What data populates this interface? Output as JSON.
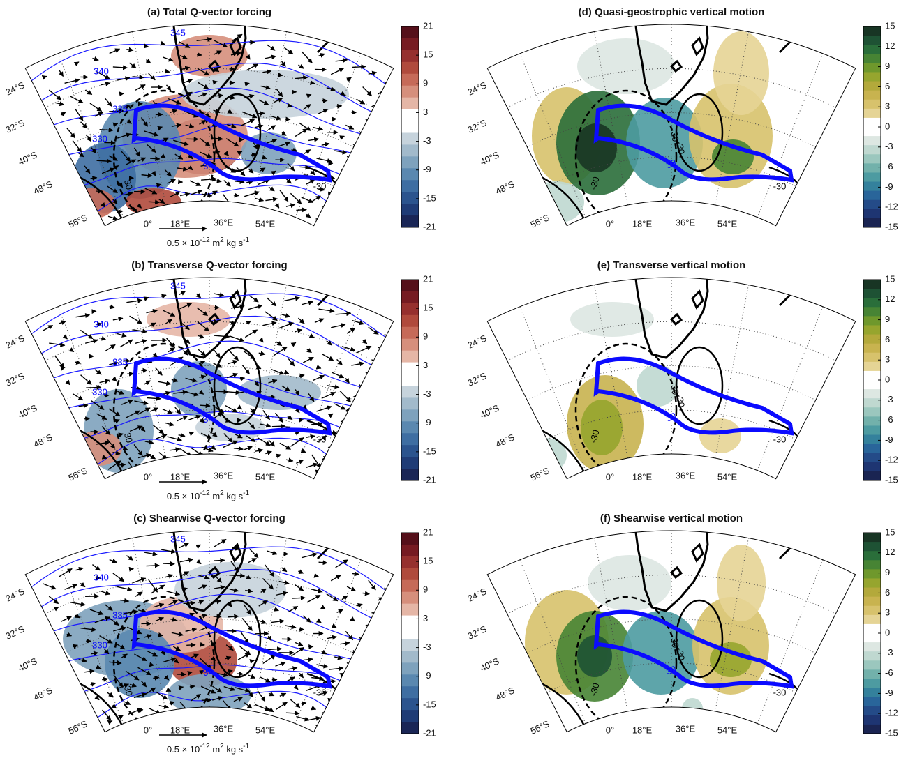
{
  "panels": [
    {
      "title": "(a)  Total Q-vector forcing",
      "lat_labels": [
        "24°S",
        "32°S",
        "40°S",
        "48°S",
        "56°S"
      ],
      "lon_labels": [
        "0°",
        "18°E",
        "36°E",
        "54°E"
      ],
      "contour_labels": [
        "345",
        "340",
        "335",
        "330",
        "38",
        "30",
        "-30"
      ],
      "colorbar": {
        "clim": [
          -21,
          21
        ],
        "ticks": [
          21,
          15,
          9,
          3,
          -3,
          -9,
          -15,
          -21
        ],
        "colors": [
          "#55101a",
          "#761b22",
          "#96302e",
          "#b04a3c",
          "#c66a58",
          "#d68f7c",
          "#e5b6a6",
          "#ffffff",
          "#ffffff",
          "#c6d3dc",
          "#a2bacb",
          "#7ea2bd",
          "#5a88b0",
          "#3e6ea2",
          "#2b548e",
          "#1f3c76",
          "#1a2656"
        ]
      },
      "vector_scale": {
        "parts": [
          "0.5 × 10",
          "-12",
          " m",
          "2",
          " kg s",
          "-1"
        ]
      }
    },
    {
      "title": "(d)  Quasi-geostrophic vertical motion",
      "lat_labels": [
        "24°S",
        "32°S",
        "40°S",
        "48°S",
        "56°S"
      ],
      "lon_labels": [
        "0°",
        "18°E",
        "36°E",
        "54°E"
      ],
      "contour_labels": [
        "-30",
        "30",
        "-30",
        "38",
        "-30"
      ],
      "colorbar": {
        "clim": [
          -15,
          15
        ],
        "ticks": [
          15,
          12,
          9,
          6,
          3,
          0,
          -3,
          -6,
          -9,
          -12,
          -15
        ],
        "colors": [
          "#183524",
          "#1e5234",
          "#2a6e3a",
          "#478434",
          "#6f982c",
          "#96a52e",
          "#b3a93b",
          "#c8b34f",
          "#d7c26c",
          "#e5d495",
          "#ffffff",
          "#ffffff",
          "#dde7e2",
          "#bfd8d0",
          "#9bc7be",
          "#72b1ab",
          "#4d9ba1",
          "#34819c",
          "#29659a",
          "#244b88",
          "#1e3572",
          "#1a2452"
        ]
      }
    },
    {
      "title": "(b) Transverse Q-vector forcing",
      "lat_labels": [
        "24°S",
        "32°S",
        "40°S",
        "48°S",
        "56°S"
      ],
      "lon_labels": [
        "0°",
        "18°E",
        "36°E",
        "54°E"
      ],
      "contour_labels": [
        "345",
        "340",
        "335",
        "330",
        "38",
        "30",
        "-30"
      ],
      "colorbar": {
        "clim": [
          -21,
          21
        ],
        "ticks": [
          21,
          15,
          9,
          3,
          -3,
          -9,
          -15,
          -21
        ],
        "colors": [
          "#55101a",
          "#761b22",
          "#96302e",
          "#b04a3c",
          "#c66a58",
          "#d68f7c",
          "#e5b6a6",
          "#ffffff",
          "#ffffff",
          "#c6d3dc",
          "#a2bacb",
          "#7ea2bd",
          "#5a88b0",
          "#3e6ea2",
          "#2b548e",
          "#1f3c76",
          "#1a2656"
        ]
      },
      "vector_scale": {
        "parts": [
          "0.5 × 10",
          "-12",
          " m",
          "2",
          " kg s",
          "-1"
        ]
      }
    },
    {
      "title": "(e) Transverse vertical motion",
      "lat_labels": [
        "24°S",
        "32°S",
        "40°S",
        "48°S",
        "56°S"
      ],
      "lon_labels": [
        "0°",
        "18°E",
        "36°E",
        "54°E"
      ],
      "contour_labels": [
        "-30",
        "30",
        "-30",
        "38",
        "-30"
      ],
      "colorbar": {
        "clim": [
          -15,
          15
        ],
        "ticks": [
          15,
          12,
          9,
          6,
          3,
          0,
          -3,
          -6,
          -9,
          -12,
          -15
        ],
        "colors": [
          "#183524",
          "#1e5234",
          "#2a6e3a",
          "#478434",
          "#6f982c",
          "#96a52e",
          "#b3a93b",
          "#c8b34f",
          "#d7c26c",
          "#e5d495",
          "#ffffff",
          "#ffffff",
          "#dde7e2",
          "#bfd8d0",
          "#9bc7be",
          "#72b1ab",
          "#4d9ba1",
          "#34819c",
          "#29659a",
          "#244b88",
          "#1e3572",
          "#1a2452"
        ]
      }
    },
    {
      "title": "(c) Shearwise Q-vector forcing",
      "lat_labels": [
        "24°S",
        "32°S",
        "40°S",
        "48°S",
        "56°S"
      ],
      "lon_labels": [
        "0°",
        "18°E",
        "36°E",
        "54°E"
      ],
      "contour_labels": [
        "345",
        "340",
        "335",
        "330",
        "38",
        "30",
        "-30"
      ],
      "colorbar": {
        "clim": [
          -21,
          21
        ],
        "ticks": [
          21,
          15,
          9,
          3,
          -3,
          -9,
          -15,
          -21
        ],
        "colors": [
          "#55101a",
          "#761b22",
          "#96302e",
          "#b04a3c",
          "#c66a58",
          "#d68f7c",
          "#e5b6a6",
          "#ffffff",
          "#ffffff",
          "#c6d3dc",
          "#a2bacb",
          "#7ea2bd",
          "#5a88b0",
          "#3e6ea2",
          "#2b548e",
          "#1f3c76",
          "#1a2656"
        ]
      },
      "vector_scale": {
        "parts": [
          "0.5 × 10",
          "-12",
          " m",
          "2",
          " kg s",
          "-1"
        ]
      }
    },
    {
      "title": "(f) Shearwise vertical motion",
      "lat_labels": [
        "24°S",
        "32°S",
        "40°S",
        "48°S",
        "56°S"
      ],
      "lon_labels": [
        "0°",
        "18°E",
        "36°E",
        "54°E"
      ],
      "contour_labels": [
        "-30",
        "30",
        "-30",
        "38",
        "-30"
      ],
      "colorbar": {
        "clim": [
          -15,
          15
        ],
        "ticks": [
          15,
          12,
          9,
          6,
          3,
          0,
          -3,
          -6,
          -9,
          -12,
          -15
        ],
        "colors": [
          "#183524",
          "#1e5234",
          "#2a6e3a",
          "#478434",
          "#6f982c",
          "#96a52e",
          "#b3a93b",
          "#c8b34f",
          "#d7c26c",
          "#e5d495",
          "#ffffff",
          "#ffffff",
          "#dde7e2",
          "#bfd8d0",
          "#9bc7be",
          "#72b1ab",
          "#4d9ba1",
          "#34819c",
          "#29659a",
          "#244b88",
          "#1e3572",
          "#1a2452"
        ]
      }
    }
  ]
}
